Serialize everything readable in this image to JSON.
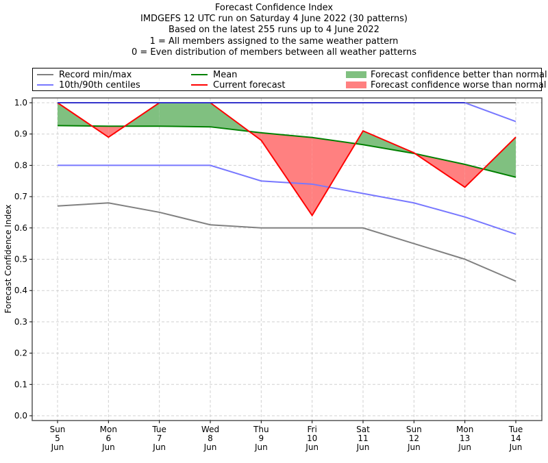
{
  "chart_data": {
    "type": "line",
    "title_lines": [
      "Forecast Confidence Index",
      "IMDGEFS 12 UTC run on Saturday 4 June 2022 (30 patterns)",
      "Based on the latest 255 runs up to 4 June 2022",
      "1 = All members assigned to the same weather pattern",
      "0 = Even distribution of members between all weather patterns"
    ],
    "xlabel": "",
    "ylabel": "Forecast Confidence Index",
    "ylim": [
      0.0,
      1.0
    ],
    "yticks": [
      "0.0",
      "0.1",
      "0.2",
      "0.3",
      "0.4",
      "0.5",
      "0.6",
      "0.7",
      "0.8",
      "0.9",
      "1.0"
    ],
    "grid": true,
    "legend_position": "top",
    "categories": [
      [
        "Sun",
        "5",
        "Jun"
      ],
      [
        "Mon",
        "6",
        "Jun"
      ],
      [
        "Tue",
        "7",
        "Jun"
      ],
      [
        "Wed",
        "8",
        "Jun"
      ],
      [
        "Thu",
        "9",
        "Jun"
      ],
      [
        "Fri",
        "10",
        "Jun"
      ],
      [
        "Sat",
        "11",
        "Jun"
      ],
      [
        "Sun",
        "12",
        "Jun"
      ],
      [
        "Mon",
        "13",
        "Jun"
      ],
      [
        "Tue",
        "14",
        "Jun"
      ]
    ],
    "series": [
      {
        "name": "Record max",
        "legend": "Record min/max",
        "color": "#808080",
        "values": [
          1.0,
          1.0,
          1.0,
          1.0,
          1.0,
          1.0,
          1.0,
          1.0,
          1.0,
          1.0
        ]
      },
      {
        "name": "Record min",
        "legend": "Record min/max",
        "color": "#808080",
        "values": [
          0.67,
          0.68,
          0.65,
          0.61,
          0.6,
          0.6,
          0.6,
          0.55,
          0.5,
          0.43
        ]
      },
      {
        "name": "90th centile",
        "legend": "10th/90th centiles",
        "color": "#7777ff",
        "values": [
          1.0,
          1.0,
          1.0,
          1.0,
          1.0,
          1.0,
          1.0,
          1.0,
          1.0,
          0.94
        ]
      },
      {
        "name": "10th centile",
        "legend": "10th/90th centiles",
        "color": "#7777ff",
        "values": [
          0.8,
          0.8,
          0.8,
          0.8,
          0.75,
          0.74,
          0.71,
          0.68,
          0.635,
          0.58
        ]
      },
      {
        "name": "Mean",
        "legend": "Mean",
        "color": "#008000",
        "values": [
          0.927,
          0.925,
          0.925,
          0.923,
          0.904,
          0.889,
          0.866,
          0.838,
          0.803,
          0.762
        ]
      },
      {
        "name": "Current forecast",
        "legend": "Current forecast",
        "color": "#ff0000",
        "values": [
          1.0,
          0.89,
          1.0,
          1.0,
          0.88,
          0.64,
          0.91,
          0.84,
          0.73,
          0.89
        ]
      }
    ],
    "fills": [
      {
        "name": "Forecast confidence better than normal",
        "color": "#80c080",
        "condition": "current >= mean"
      },
      {
        "name": "Forecast confidence worse than normal",
        "color": "#ff8080",
        "condition": "current < mean"
      }
    ]
  },
  "legend": {
    "record": "Record min/max",
    "centiles": "10th/90th centiles",
    "mean": "Mean",
    "current": "Current forecast",
    "better": "Forecast confidence better than normal",
    "worse": "Forecast confidence worse than normal"
  }
}
